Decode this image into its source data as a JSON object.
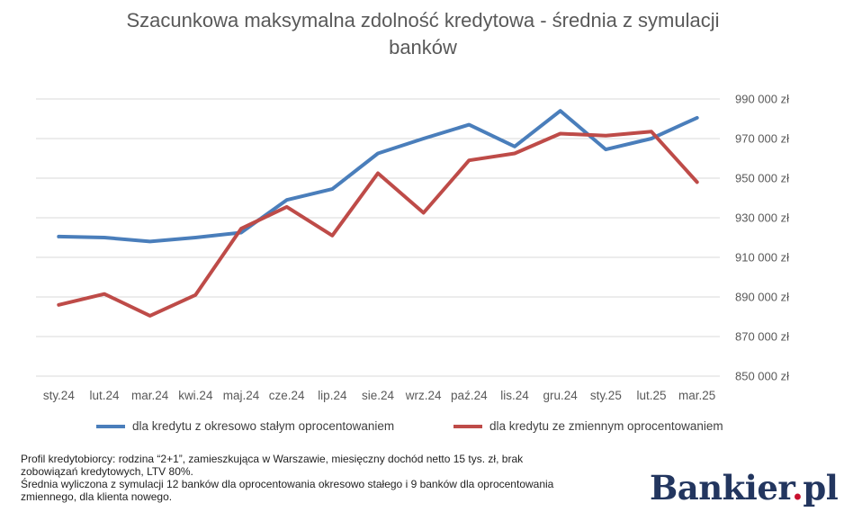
{
  "chart_data": {
    "type": "line",
    "title": "Szacunkowa maksymalna zdolność kredytowa - średnia z symulacji banków",
    "title_lines": [
      "Szacunkowa maksymalna zdolność kredytowa - średnia z symulacji",
      "banków"
    ],
    "categories": [
      "sty.24",
      "lut.24",
      "mar.24",
      "kwi.24",
      "maj.24",
      "cze.24",
      "lip.24",
      "sie.24",
      "wrz.24",
      "paź.24",
      "lis.24",
      "gru.24",
      "sty.25",
      "lut.25",
      "mar.25"
    ],
    "series": [
      {
        "name": "dla kredytu z okresowo stałym oprocentowaniem",
        "color": "#4a7ebb",
        "values": [
          920500,
          920000,
          918000,
          920000,
          922500,
          939000,
          944500,
          962500,
          970000,
          977000,
          966000,
          984000,
          964500,
          970000,
          980500
        ]
      },
      {
        "name": "dla kredytu ze zmiennym oprocentowaniem",
        "color": "#be4b48",
        "values": [
          886000,
          891500,
          880500,
          891000,
          924500,
          935500,
          921000,
          952500,
          932500,
          959000,
          962500,
          972500,
          971500,
          973500,
          948000
        ]
      }
    ],
    "ylim": [
      850000,
      990000
    ],
    "yticks": [
      850000,
      870000,
      890000,
      910000,
      930000,
      950000,
      970000,
      990000
    ],
    "ytick_labels": [
      "850 000 zł",
      "870 000 zł",
      "890 000 zł",
      "910 000 zł",
      "930 000 zł",
      "950 000 zł",
      "970 000 zł",
      "990 000 zł"
    ],
    "grid": true,
    "legend_position": "bottom"
  },
  "footnote": {
    "line1": "Profil kredytobiorcy: rodzina “2+1”, zamieszkująca w Warszawie, miesięczny dochód netto 15 tys. zł, brak zobowiązań kredytowych, LTV 80%.",
    "line2": "Średnia wyliczona z symulacji 12 banków dla oprocentowania okresowo stałego i 9 banków dla oprocentowania zmiennego, dla klienta nowego."
  },
  "logo": {
    "text": "Bankier",
    "dot": ".",
    "suffix": "pl"
  }
}
